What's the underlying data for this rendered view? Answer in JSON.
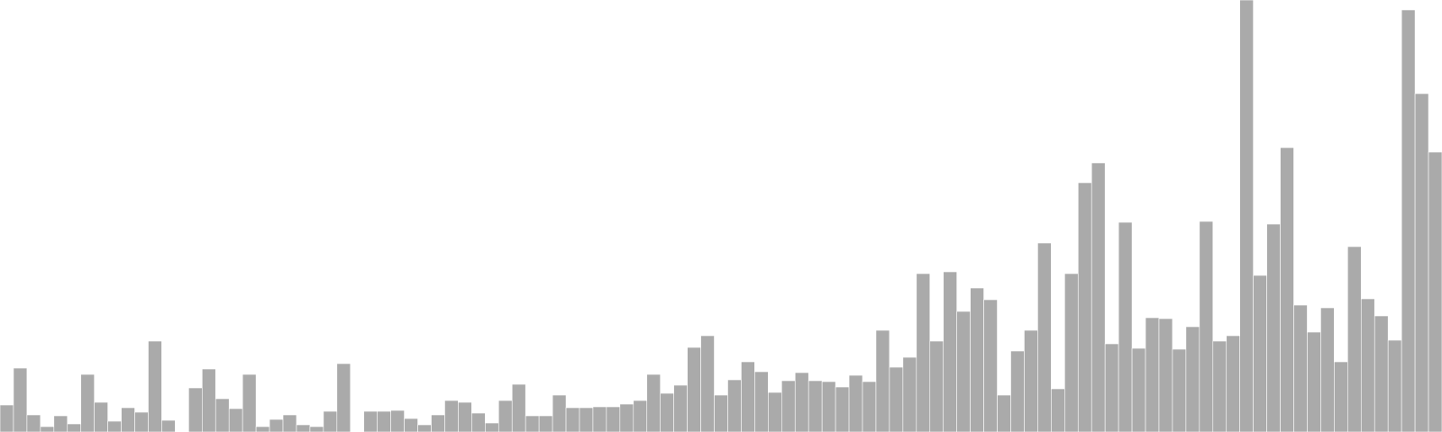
{
  "chart_data": {
    "type": "bar",
    "title": "",
    "xlabel": "",
    "ylabel": "",
    "ylim": [
      0,
      480
    ],
    "grid": false,
    "legend": "none",
    "bar_color": "#aaaaaa",
    "bar_edge_color": "#ffffff",
    "values": [
      30,
      71,
      19,
      6,
      18,
      9,
      64,
      33,
      12,
      27,
      22,
      101,
      13,
      0,
      49,
      70,
      37,
      26,
      64,
      6,
      14,
      19,
      8,
      6,
      23,
      76,
      0,
      23,
      23,
      24,
      15,
      8,
      19,
      35,
      33,
      21,
      10,
      35,
      53,
      18,
      18,
      41,
      27,
      27,
      28,
      28,
      31,
      35,
      64,
      43,
      52,
      94,
      107,
      41,
      58,
      78,
      67,
      44,
      57,
      66,
      57,
      56,
      50,
      63,
      56,
      113,
      72,
      83,
      176,
      101,
      178,
      134,
      160,
      147,
      41,
      90,
      113,
      210,
      48,
      176,
      277,
      299,
      98,
      233,
      93,
      127,
      126,
      92,
      117,
      234,
      101,
      107,
      480,
      174,
      231,
      316,
      141,
      111,
      138,
      78,
      206,
      148,
      129,
      102,
      469,
      376,
      311
    ]
  }
}
